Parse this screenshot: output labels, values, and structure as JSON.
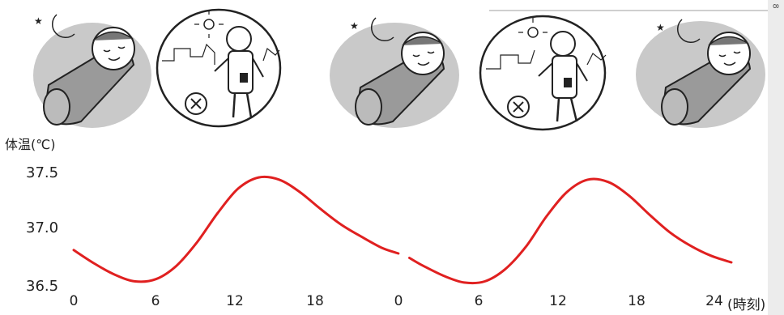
{
  "chart_data": {
    "type": "line",
    "ylabel": "体温(℃)",
    "xlabel_suffix": "(時刻)",
    "y_ticks": [
      "37.5",
      "37.0",
      "36.5"
    ],
    "x_ticks": [
      "0",
      "6",
      "12",
      "18",
      "0",
      "6",
      "12",
      "18",
      "24"
    ],
    "ylim": [
      36.5,
      37.5
    ],
    "xlim": [
      0,
      48
    ],
    "grid": false,
    "line_color": "#e02020",
    "series": [
      {
        "name": "",
        "segments": [
          {
            "x": [
              0,
              1.5,
              3,
              4.5,
              6,
              7.5,
              9,
              10.5,
              12,
              13.5,
              15,
              16.5,
              18,
              19.5,
              21,
              22.5,
              23.7
            ],
            "y": [
              36.82,
              36.7,
              36.6,
              36.54,
              36.56,
              36.68,
              36.89,
              37.15,
              37.37,
              37.47,
              37.45,
              37.34,
              37.19,
              37.05,
              36.94,
              36.84,
              36.79
            ]
          },
          {
            "x": [
              24.5,
              25.5,
              27,
              28.5,
              30,
              31.5,
              33,
              34.5,
              36,
              37.5,
              39,
              40.5,
              42,
              43.5,
              45,
              46.5,
              48
            ],
            "y": [
              36.75,
              36.68,
              36.59,
              36.53,
              36.54,
              36.65,
              36.85,
              37.12,
              37.34,
              37.45,
              37.43,
              37.31,
              37.14,
              36.98,
              36.86,
              36.77,
              36.71
            ]
          }
        ]
      }
    ]
  },
  "illustrations": [
    {
      "scene": "sleeping",
      "icon": "sleeping-child-moon-icon"
    },
    {
      "scene": "playing",
      "icon": "child-playing-ball-sun-icon"
    },
    {
      "scene": "sleeping",
      "icon": "sleeping-child-moon-icon"
    },
    {
      "scene": "playing",
      "icon": "child-playing-ball-sun-icon"
    },
    {
      "scene": "sleeping",
      "icon": "sleeping-child-moon-icon"
    }
  ],
  "scan_margin_mark": "8"
}
